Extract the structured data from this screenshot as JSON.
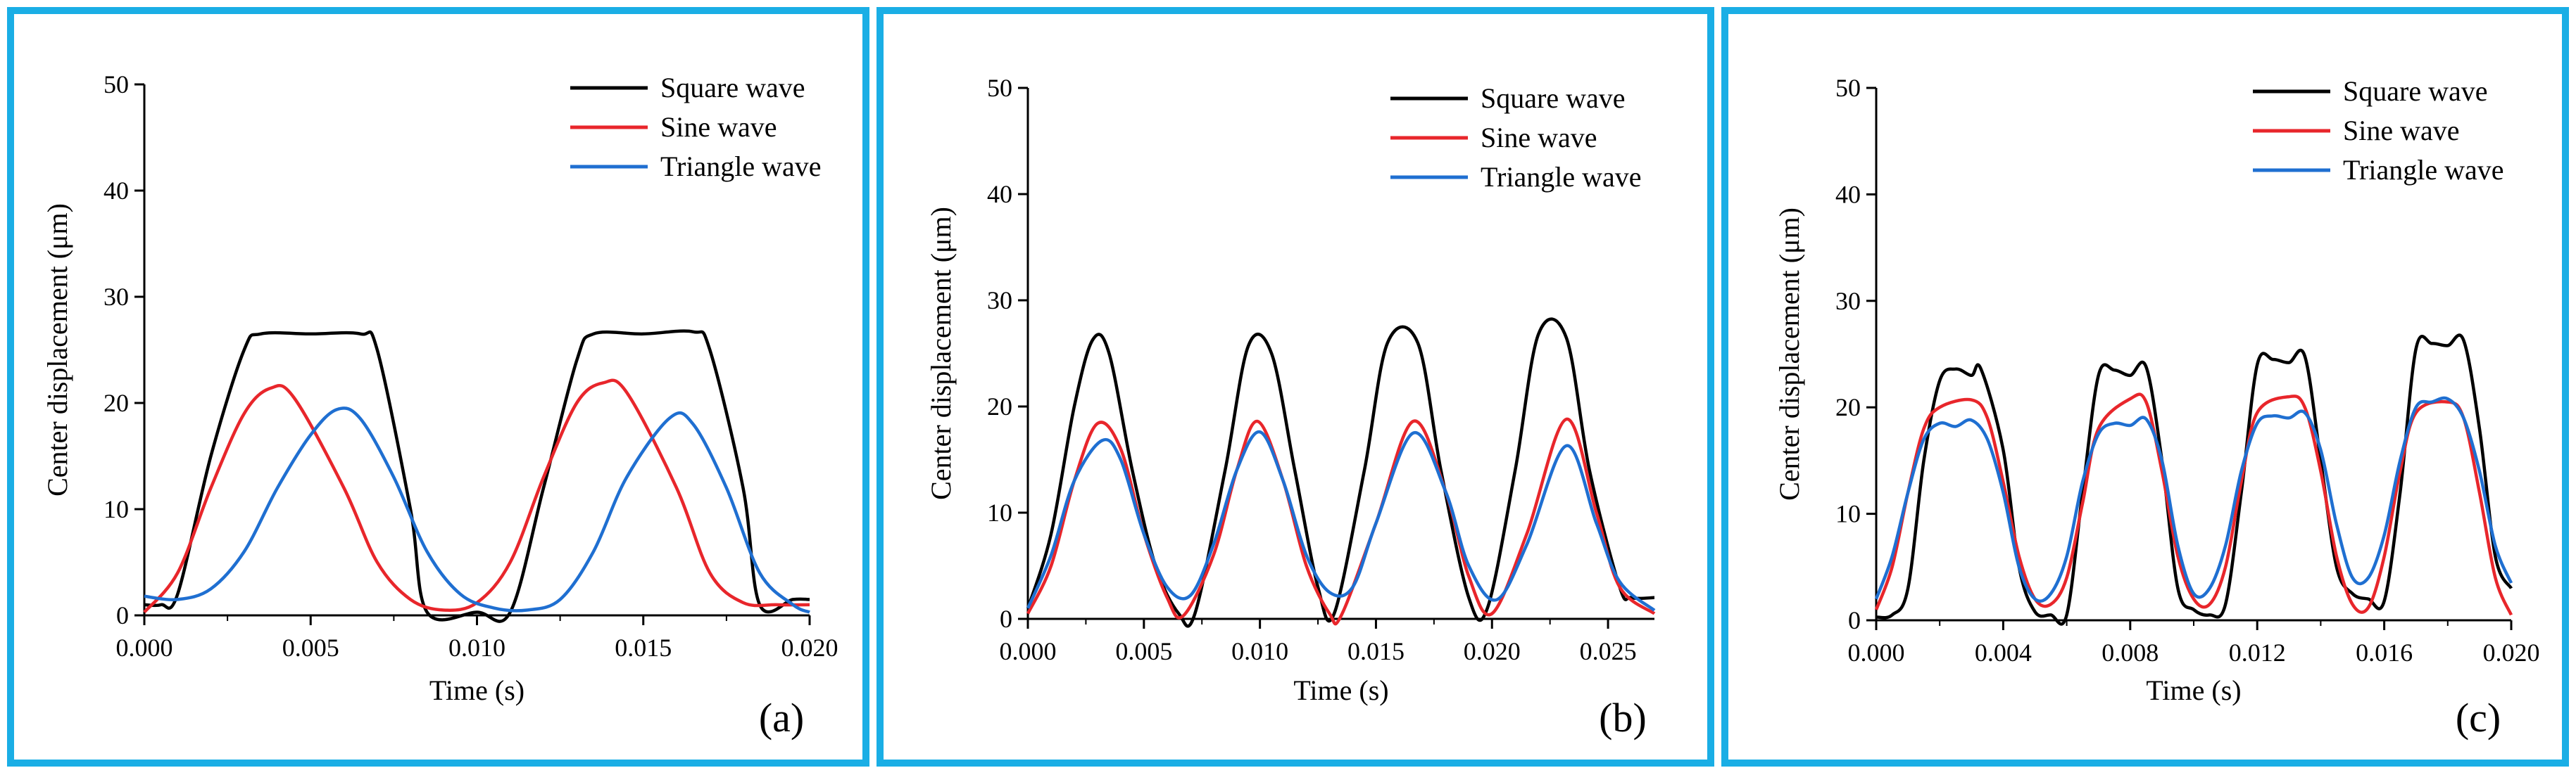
{
  "colors": {
    "square": "#000000",
    "sine": "#e8262b",
    "triangle": "#1f6fd1",
    "frame": "#1aaee5"
  },
  "legend": [
    "Square wave",
    "Sine wave",
    "Triangle wave"
  ],
  "chart_data": [
    {
      "panel": "(a)",
      "type": "line",
      "xlabel": "Time (s)",
      "ylabel": "Center displacement (μm)",
      "xlim": [
        0,
        0.02
      ],
      "ylim": [
        0,
        50
      ],
      "xticks": [
        "0.000",
        "0.005",
        "0.010",
        "0.015",
        "0.020"
      ],
      "xtick_values": [
        0,
        0.005,
        0.01,
        0.015,
        0.02
      ],
      "yticks": [
        "0",
        "10",
        "20",
        "30",
        "40",
        "50"
      ],
      "legend_position": "top-right",
      "series": [
        {
          "name": "Square wave",
          "color": "#000000",
          "x": [
            0,
            0.0005,
            0.001,
            0.002,
            0.003,
            0.0035,
            0.005,
            0.0065,
            0.007,
            0.008,
            0.0085,
            0.01,
            0.011,
            0.012,
            0.013,
            0.0135,
            0.015,
            0.0165,
            0.017,
            0.018,
            0.0185,
            0.0195,
            0.02
          ],
          "y": [
            1,
            1,
            2,
            15,
            25,
            26.5,
            26.5,
            26.5,
            25,
            10,
            0.3,
            0.3,
            0.3,
            12,
            24,
            26.5,
            26.5,
            26.7,
            25,
            12,
            1,
            1.5,
            1.5
          ]
        },
        {
          "name": "Sine wave",
          "color": "#e8262b",
          "x": [
            0,
            0.001,
            0.002,
            0.003,
            0.0038,
            0.0045,
            0.006,
            0.007,
            0.008,
            0.009,
            0.01,
            0.011,
            0.012,
            0.013,
            0.0138,
            0.0145,
            0.016,
            0.017,
            0.018,
            0.019,
            0.02
          ],
          "y": [
            0.3,
            4,
            12,
            19,
            21.4,
            20.5,
            12,
            5,
            1.5,
            0.5,
            1.2,
            5,
            13,
            20,
            21.9,
            21,
            12,
            4,
            1.2,
            1,
            1
          ]
        },
        {
          "name": "Triangle wave",
          "color": "#1f6fd1",
          "x": [
            0,
            0.001,
            0.002,
            0.003,
            0.004,
            0.005,
            0.0058,
            0.0065,
            0.0075,
            0.0085,
            0.0095,
            0.0105,
            0.0115,
            0.0125,
            0.0135,
            0.0145,
            0.0158,
            0.0165,
            0.0175,
            0.0185,
            0.0195,
            0.02
          ],
          "y": [
            1.8,
            1.5,
            2.5,
            6,
            12,
            17,
            19.4,
            18.5,
            13,
            6,
            2,
            0.7,
            0.5,
            1.5,
            6,
            13,
            18.6,
            18,
            12,
            4,
            1,
            0.3
          ]
        }
      ]
    },
    {
      "panel": "(b)",
      "type": "line",
      "xlabel": "Time (s)",
      "ylabel": "Center displacement (μm)",
      "xlim": [
        0,
        0.027
      ],
      "ylim": [
        0,
        50
      ],
      "xticks": [
        "0.000",
        "0.005",
        "0.010",
        "0.015",
        "0.020",
        "0.025"
      ],
      "xtick_values": [
        0,
        0.005,
        0.01,
        0.015,
        0.02,
        0.025
      ],
      "yticks": [
        "0",
        "10",
        "20",
        "30",
        "40",
        "50"
      ],
      "legend_position": "top-right",
      "series": [
        {
          "name": "Square wave",
          "color": "#000000",
          "x": [
            0,
            0.001,
            0.002,
            0.0028,
            0.0035,
            0.0045,
            0.0055,
            0.0065,
            0.0072,
            0.0085,
            0.0095,
            0.0105,
            0.0115,
            0.0125,
            0.0132,
            0.0145,
            0.0155,
            0.0168,
            0.0178,
            0.019,
            0.0198,
            0.021,
            0.022,
            0.0232,
            0.0242,
            0.0255,
            0.026,
            0.027
          ],
          "y": [
            1,
            8,
            20,
            26.3,
            25,
            14,
            5,
            0.5,
            0.5,
            14,
            25.7,
            25,
            14,
            3,
            0.5,
            14,
            26,
            26,
            14,
            2,
            1,
            14,
            26.8,
            26.5,
            14,
            3,
            2,
            2
          ]
        },
        {
          "name": "Sine wave",
          "color": "#e8262b",
          "x": [
            0,
            0.001,
            0.002,
            0.003,
            0.004,
            0.005,
            0.006,
            0.0067,
            0.008,
            0.009,
            0.0099,
            0.011,
            0.012,
            0.013,
            0.0135,
            0.015,
            0.0166,
            0.018,
            0.019,
            0.02,
            0.0215,
            0.0232,
            0.0245,
            0.0255,
            0.027
          ],
          "y": [
            0.5,
            5,
            13,
            18.4,
            16,
            8,
            2,
            0.3,
            6,
            14,
            18.6,
            13,
            5,
            0.5,
            0.3,
            9,
            18.6,
            12,
            4,
            0.5,
            8,
            18.8,
            10,
            3,
            0.5
          ]
        },
        {
          "name": "Triangle wave",
          "color": "#1f6fd1",
          "x": [
            0,
            0.001,
            0.002,
            0.0032,
            0.004,
            0.005,
            0.006,
            0.007,
            0.008,
            0.009,
            0.01,
            0.011,
            0.012,
            0.013,
            0.014,
            0.015,
            0.0166,
            0.018,
            0.019,
            0.0202,
            0.0215,
            0.0232,
            0.0245,
            0.0255,
            0.027
          ],
          "y": [
            1,
            6,
            13,
            16.8,
            15,
            8,
            3,
            2.2,
            7,
            14,
            17.6,
            13,
            6,
            2.5,
            3,
            9,
            17.5,
            12,
            5,
            1.8,
            7,
            16.3,
            9,
            3.5,
            0.8
          ]
        }
      ]
    },
    {
      "panel": "(c)",
      "type": "line",
      "xlabel": "Time (s)",
      "ylabel": "Center displacement (μm)",
      "xlim": [
        0,
        0.02
      ],
      "ylim": [
        0,
        50
      ],
      "xticks": [
        "0.000",
        "0.004",
        "0.008",
        "0.012",
        "0.016",
        "0.020"
      ],
      "xtick_values": [
        0,
        0.004,
        0.008,
        0.012,
        0.016,
        0.02
      ],
      "yticks": [
        "0",
        "10",
        "20",
        "30",
        "40",
        "50"
      ],
      "legend_position": "top-right",
      "series": [
        {
          "name": "Square wave",
          "color": "#000000",
          "x": [
            0,
            0.0005,
            0.001,
            0.0015,
            0.002,
            0.0025,
            0.003,
            0.0033,
            0.004,
            0.0045,
            0.005,
            0.0055,
            0.006,
            0.0065,
            0.007,
            0.0075,
            0.008,
            0.0085,
            0.009,
            0.0095,
            0.01,
            0.0105,
            0.011,
            0.0115,
            0.012,
            0.0125,
            0.013,
            0.0135,
            0.014,
            0.0145,
            0.015,
            0.0155,
            0.016,
            0.0165,
            0.017,
            0.0175,
            0.018,
            0.0185,
            0.019,
            0.0195,
            0.02
          ],
          "y": [
            0.3,
            0.5,
            3,
            15,
            22.5,
            23.6,
            23,
            23.6,
            16,
            5,
            0.8,
            0.5,
            0.5,
            12,
            23,
            23.5,
            23,
            23.8,
            15,
            3,
            1,
            0.5,
            1.5,
            12,
            24,
            24.5,
            24.2,
            24.8,
            15,
            5,
            2.5,
            2,
            1.8,
            12,
            25.5,
            26,
            25.8,
            26.3,
            18,
            6,
            3
          ]
        },
        {
          "name": "Sine wave",
          "color": "#e8262b",
          "x": [
            0,
            0.0005,
            0.001,
            0.0015,
            0.002,
            0.003,
            0.0035,
            0.004,
            0.0045,
            0.005,
            0.0055,
            0.006,
            0.0065,
            0.007,
            0.008,
            0.0085,
            0.009,
            0.0095,
            0.01,
            0.0105,
            0.011,
            0.0115,
            0.012,
            0.013,
            0.0135,
            0.014,
            0.0145,
            0.015,
            0.0155,
            0.016,
            0.0165,
            0.017,
            0.018,
            0.0185,
            0.019,
            0.0195,
            0.02
          ],
          "y": [
            1,
            5,
            12,
            18,
            20,
            20.7,
            19,
            13,
            6,
            2,
            1.5,
            4,
            11,
            18,
            20.8,
            20.5,
            14,
            6,
            2,
            1.5,
            5,
            13,
            19.5,
            21,
            20,
            14,
            6,
            1.5,
            1.2,
            6,
            14,
            19.5,
            20.5,
            19,
            12,
            4,
            0.5
          ]
        },
        {
          "name": "Triangle wave",
          "color": "#1f6fd1",
          "x": [
            0,
            0.0005,
            0.001,
            0.0015,
            0.002,
            0.0025,
            0.003,
            0.0035,
            0.004,
            0.0045,
            0.005,
            0.0055,
            0.006,
            0.0065,
            0.007,
            0.0075,
            0.008,
            0.0085,
            0.009,
            0.0095,
            0.01,
            0.0105,
            0.011,
            0.0115,
            0.012,
            0.0125,
            0.013,
            0.0135,
            0.014,
            0.0145,
            0.015,
            0.0155,
            0.016,
            0.0165,
            0.017,
            0.0175,
            0.018,
            0.0185,
            0.019,
            0.0195,
            0.02
          ],
          "y": [
            2,
            6,
            12,
            17,
            18.5,
            18.2,
            18.8,
            17,
            12,
            5,
            2,
            2.5,
            6,
            13,
            17.5,
            18.5,
            18.3,
            18.9,
            15,
            7,
            2.5,
            3,
            7,
            14,
            18.5,
            19.2,
            19,
            19.5,
            16,
            9,
            4,
            4,
            8,
            15,
            20,
            20.5,
            20.8,
            19,
            14,
            7,
            3.5
          ]
        }
      ]
    }
  ]
}
